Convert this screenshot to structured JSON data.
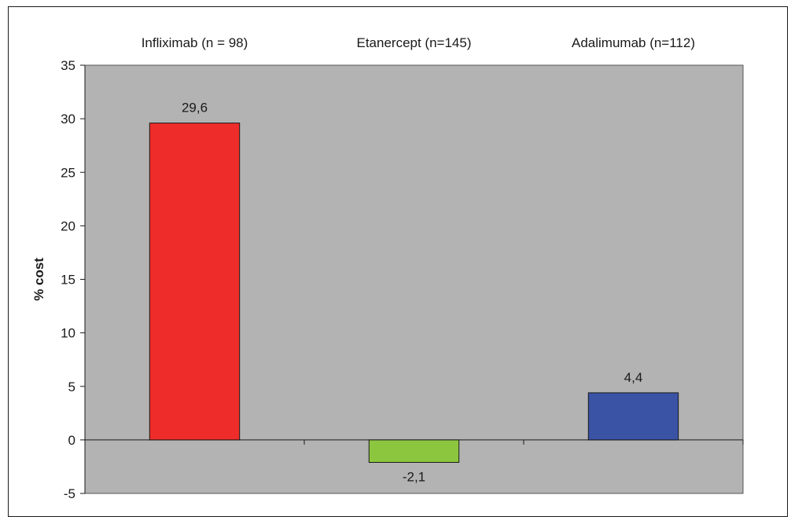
{
  "chart_data": {
    "type": "bar",
    "categories": [
      "Infliximab (n = 98)",
      "Etanercept (n=145)",
      "Adalimumab (n=112)"
    ],
    "values": [
      29.6,
      -2.1,
      4.4
    ],
    "value_labels": [
      "29,6",
      "-2,1",
      "4,4"
    ],
    "bar_colors": [
      "#ee2d2a",
      "#8cc63f",
      "#3a53a4"
    ],
    "ylabel": "% cost",
    "ylim": [
      -5,
      35
    ],
    "yticks": [
      35,
      30,
      25,
      20,
      15,
      10,
      5,
      0,
      -5
    ],
    "category_axis_position": "top",
    "legend": "none",
    "grid": false,
    "plot_background": "#b3b3b3"
  }
}
